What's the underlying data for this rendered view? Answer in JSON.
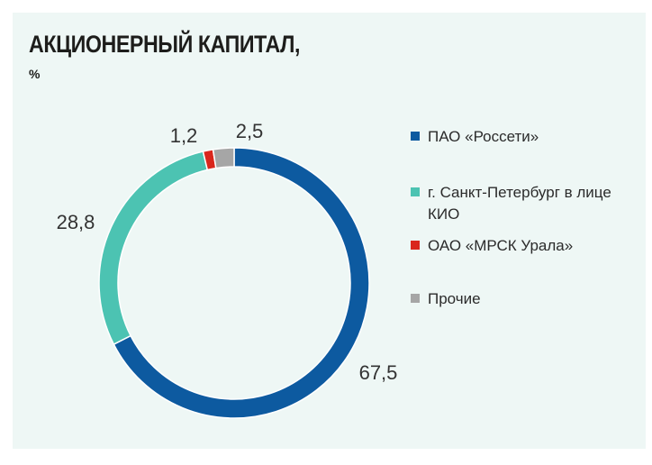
{
  "title": "АКЦИОНЕРНЫЙ КАПИТАЛ,",
  "subtitle": "%",
  "chart_data": {
    "type": "pie",
    "title": "АКЦИОНЕРНЫЙ КАПИТАЛ,",
    "subtitle": "%",
    "donut": true,
    "legend_position": "right",
    "slices": [
      {
        "label": "ПАО «Россети»",
        "value": 67.5,
        "display": "67,5",
        "color": "#0d5aa0"
      },
      {
        "label": "г. Санкт-Петербург в лице КИО",
        "value": 28.8,
        "display": "28,8",
        "color": "#4cc3b2"
      },
      {
        "label": "ОАО «МРСК Урала»",
        "value": 1.2,
        "display": "1,2",
        "color": "#d9261c"
      },
      {
        "label": "Прочие",
        "value": 2.5,
        "display": "2,5",
        "color": "#a6a6a6"
      }
    ]
  }
}
